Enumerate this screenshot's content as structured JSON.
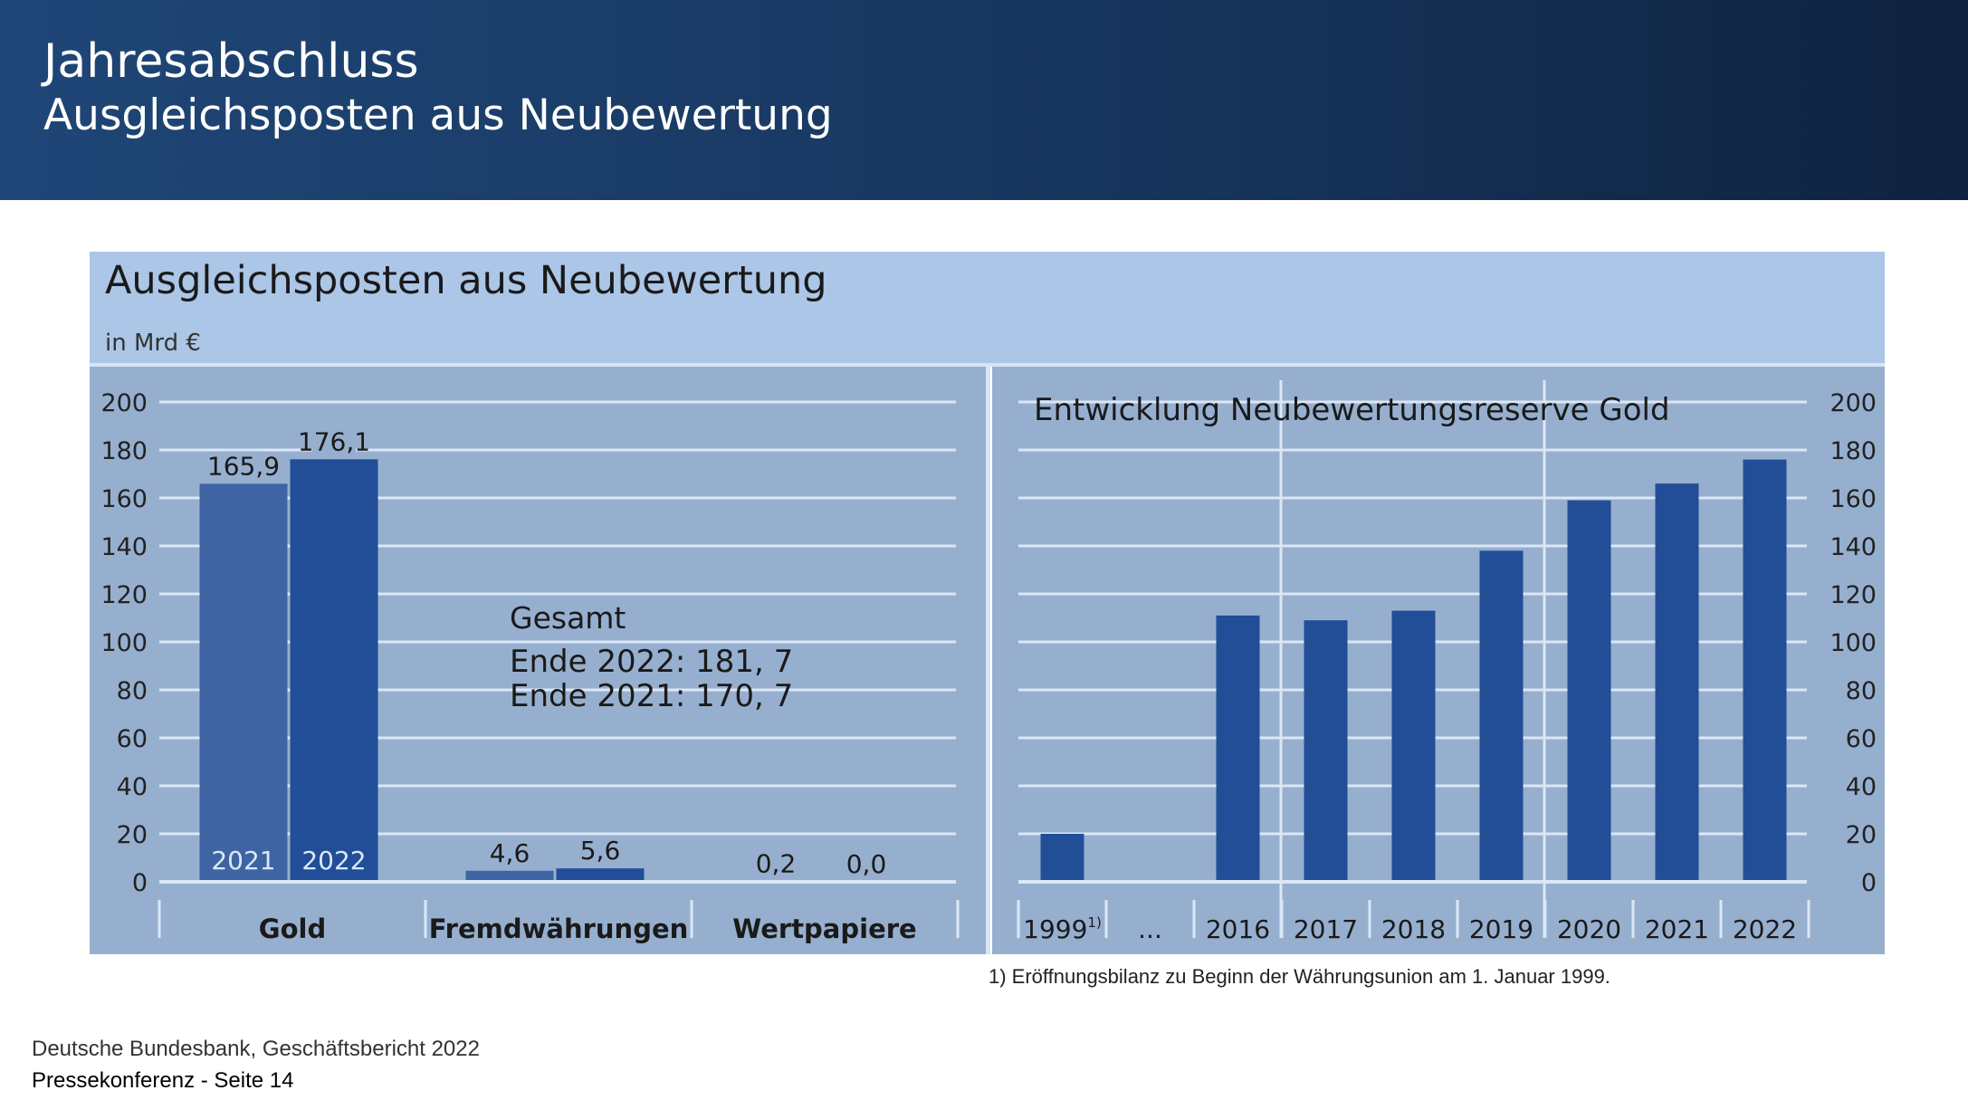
{
  "header": {
    "title": "Jahresabschluss",
    "subtitle": "Ausgleichsposten aus Neubewertung"
  },
  "panel": {
    "title": "Ausgleichsposten aus Neubewertung",
    "unit": "in Mrd €"
  },
  "annotation": {
    "heading": "Gesamt",
    "line1": "Ende 2022: 181, 7",
    "line2": "Ende 2021: 170, 7"
  },
  "chart_data": [
    {
      "type": "bar",
      "title": "",
      "categories": [
        "Gold",
        "Fremdwährungen",
        "Wertpapiere"
      ],
      "series": [
        {
          "name": "2021",
          "values": [
            165.9,
            4.6,
            0.2
          ],
          "labels": [
            "165,9",
            "4,6",
            "0,2"
          ],
          "color": "#3e64a3"
        },
        {
          "name": "2022",
          "values": [
            176.1,
            5.6,
            0.0
          ],
          "labels": [
            "176,1",
            "5,6",
            "0,0"
          ],
          "color": "#214e96"
        }
      ],
      "yticks": [
        "0",
        "20",
        "40",
        "60",
        "80",
        "100",
        "120",
        "140",
        "160",
        "180",
        "200"
      ],
      "ylim": [
        0,
        200
      ],
      "grid": true,
      "xlabel": "",
      "ylabel": ""
    },
    {
      "type": "bar",
      "title": "Entwicklung Neubewertungsreserve Gold",
      "categories": [
        "1999",
        "...",
        "2016",
        "2017",
        "2018",
        "2019",
        "2020",
        "2021",
        "2022"
      ],
      "category_superscripts": [
        "1)",
        "",
        "",
        "",
        "",
        "",
        "",
        "",
        ""
      ],
      "values": [
        20,
        null,
        111,
        109,
        113,
        138,
        159,
        166,
        176
      ],
      "color": "#214e96",
      "yticks": [
        "0",
        "20",
        "40",
        "60",
        "80",
        "100",
        "120",
        "140",
        "160",
        "180",
        "200"
      ],
      "ylim": [
        0,
        200
      ],
      "grid": true,
      "xlabel": "",
      "ylabel": ""
    }
  ],
  "footnote": "1) Eröffnungsbilanz zu Beginn der Währungsunion am 1. Januar 1999.",
  "footer": {
    "line1": "Deutsche Bundesbank, Geschäftsbericht 2022",
    "line2": "Pressekonferenz - Seite 14"
  },
  "colors": {
    "header": "#17365e",
    "panel_title_bg": "#abc6e6",
    "plot_bg": "#97afcf",
    "grid": "#dbe7f6",
    "bar_2021": "#3e64a3",
    "bar_2022": "#214e96"
  }
}
